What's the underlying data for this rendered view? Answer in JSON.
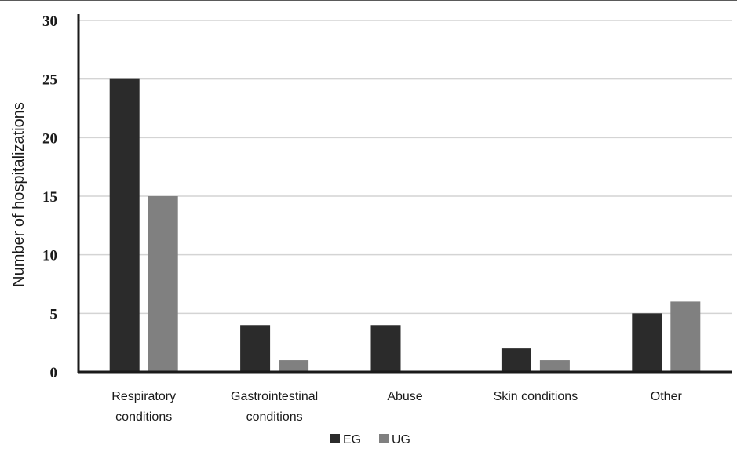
{
  "chart_data": {
    "type": "bar",
    "title": "",
    "xlabel": "",
    "ylabel": "Number of hospitalizations",
    "ylim": [
      0,
      30
    ],
    "yticks": [
      0,
      5,
      10,
      15,
      20,
      25,
      30
    ],
    "grid": true,
    "legend_position": "bottom-center",
    "categories": [
      [
        "Respiratory",
        "conditions"
      ],
      [
        "Gastrointestinal",
        "conditions"
      ],
      [
        "Abuse"
      ],
      [
        "Skin conditions"
      ],
      [
        "Other"
      ]
    ],
    "series": [
      {
        "name": "EG",
        "color": "#2b2b2b",
        "values": [
          25,
          4,
          4,
          2,
          5
        ]
      },
      {
        "name": "UG",
        "color": "#808080",
        "values": [
          15,
          1,
          0,
          1,
          6
        ]
      }
    ]
  }
}
